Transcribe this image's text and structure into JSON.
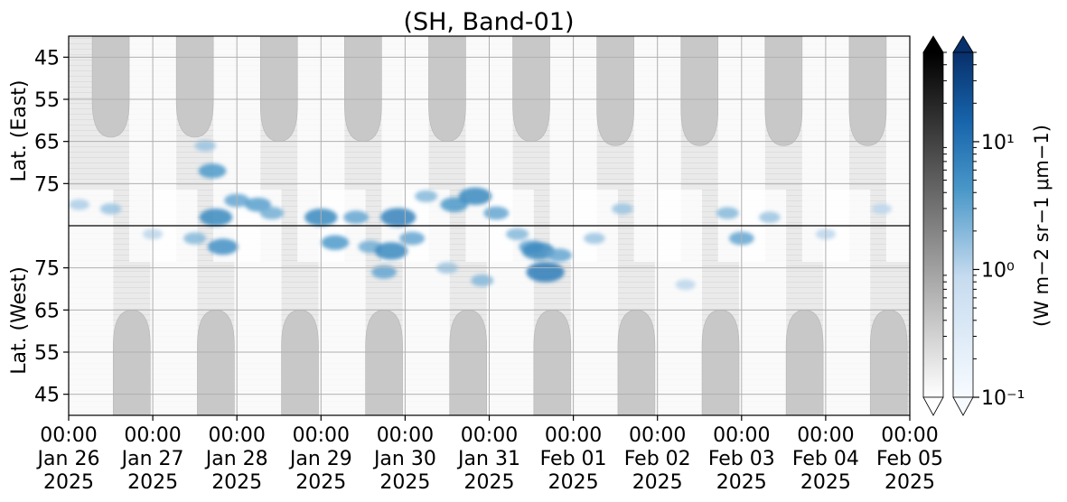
{
  "chart_data": {
    "type": "heatmap",
    "title": "(SH, Band-01)",
    "ylabel_top": "Lat. (East)",
    "ylabel_bottom": "Lat. (West)",
    "colorbar_label": "(W m−2 sr−1 μm−1)",
    "x_ticks": [
      {
        "time": "00:00",
        "date": "Jan 26",
        "year": "2025"
      },
      {
        "time": "00:00",
        "date": "Jan 27",
        "year": "2025"
      },
      {
        "time": "00:00",
        "date": "Jan 28",
        "year": "2025"
      },
      {
        "time": "00:00",
        "date": "Jan 29",
        "year": "2025"
      },
      {
        "time": "00:00",
        "date": "Jan 30",
        "year": "2025"
      },
      {
        "time": "00:00",
        "date": "Jan 31",
        "year": "2025"
      },
      {
        "time": "00:00",
        "date": "Feb 01",
        "year": "2025"
      },
      {
        "time": "00:00",
        "date": "Feb 02",
        "year": "2025"
      },
      {
        "time": "00:00",
        "date": "Feb 03",
        "year": "2025"
      },
      {
        "time": "00:00",
        "date": "Feb 04",
        "year": "2025"
      },
      {
        "time": "00:00",
        "date": "Feb 05",
        "year": "2025"
      }
    ],
    "xlim": [
      "2025-01-26 00:00",
      "2025-02-05 00:00"
    ],
    "y_ticks_top": [
      "45",
      "55",
      "65",
      "75"
    ],
    "y_ticks_bottom": [
      "75",
      "65",
      "55",
      "45"
    ],
    "east_ylim": [
      40,
      85
    ],
    "west_ylim": [
      85,
      40
    ],
    "grid": true,
    "colorbar_ticks": [
      "10⁻¹",
      "10⁰",
      "10¹"
    ],
    "colorbar_range": [
      0.1,
      50
    ],
    "colorbar_scale": "log",
    "colormaps": {
      "gray": [
        "#ffffff",
        "#000000"
      ],
      "blue": [
        "#f7fbff",
        "#08306b"
      ]
    },
    "masked_color": "#c8c8c8",
    "east_mask_lobes": [
      {
        "center": "2025-01-26 12:00",
        "min_lat": 64
      },
      {
        "center": "2025-01-27 12:00",
        "min_lat": 64
      },
      {
        "center": "2025-01-28 12:00",
        "min_lat": 65
      },
      {
        "center": "2025-01-29 12:00",
        "min_lat": 65
      },
      {
        "center": "2025-01-30 12:00",
        "min_lat": 65
      },
      {
        "center": "2025-01-31 12:00",
        "min_lat": 65
      },
      {
        "center": "2025-02-01 12:00",
        "min_lat": 66
      },
      {
        "center": "2025-02-02 12:00",
        "min_lat": 66
      },
      {
        "center": "2025-02-03 12:00",
        "min_lat": 66
      },
      {
        "center": "2025-02-04 12:00",
        "min_lat": 66
      }
    ],
    "west_mask_lobes": [
      {
        "center": "2025-01-26 18:00",
        "min_lat": 65
      },
      {
        "center": "2025-01-27 18:00",
        "min_lat": 65
      },
      {
        "center": "2025-01-28 18:00",
        "min_lat": 65
      },
      {
        "center": "2025-01-29 18:00",
        "min_lat": 65
      },
      {
        "center": "2025-01-30 18:00",
        "min_lat": 65
      },
      {
        "center": "2025-01-31 18:00",
        "min_lat": 65
      },
      {
        "center": "2025-02-01 18:00",
        "min_lat": 65
      },
      {
        "center": "2025-02-02 18:00",
        "min_lat": 65
      },
      {
        "center": "2025-02-03 18:00",
        "min_lat": 65
      },
      {
        "center": "2025-02-04 18:00",
        "min_lat": 65
      }
    ],
    "aurora_patches": [
      {
        "time": "2025-01-26 03:00",
        "lat": 80,
        "side": "east",
        "value": 1.2
      },
      {
        "time": "2025-01-26 12:00",
        "lat": 81,
        "side": "east",
        "value": 1.5
      },
      {
        "time": "2025-01-27 00:00",
        "lat": 83,
        "side": "west",
        "value": 1.0
      },
      {
        "time": "2025-01-27 12:00",
        "lat": 82,
        "side": "west",
        "value": 2.0
      },
      {
        "time": "2025-01-27 15:00",
        "lat": 66,
        "side": "east",
        "value": 1.5
      },
      {
        "time": "2025-01-27 17:00",
        "lat": 72,
        "side": "east",
        "value": 4.0
      },
      {
        "time": "2025-01-27 18:00",
        "lat": 83,
        "side": "east",
        "value": 6.0
      },
      {
        "time": "2025-01-27 20:00",
        "lat": 80,
        "side": "west",
        "value": 5.0
      },
      {
        "time": "2025-01-28 00:00",
        "lat": 79,
        "side": "east",
        "value": 3.0
      },
      {
        "time": "2025-01-28 06:00",
        "lat": 80,
        "side": "east",
        "value": 3.5
      },
      {
        "time": "2025-01-28 10:00",
        "lat": 82,
        "side": "east",
        "value": 2.5
      },
      {
        "time": "2025-01-29 00:00",
        "lat": 83,
        "side": "east",
        "value": 6.0
      },
      {
        "time": "2025-01-29 04:00",
        "lat": 81,
        "side": "west",
        "value": 4.0
      },
      {
        "time": "2025-01-29 10:00",
        "lat": 83,
        "side": "east",
        "value": 3.0
      },
      {
        "time": "2025-01-29 14:00",
        "lat": 80,
        "side": "west",
        "value": 2.5
      },
      {
        "time": "2025-01-29 18:00",
        "lat": 74,
        "side": "west",
        "value": 3.0
      },
      {
        "time": "2025-01-29 20:00",
        "lat": 79,
        "side": "west",
        "value": 6.0
      },
      {
        "time": "2025-01-29 22:00",
        "lat": 83,
        "side": "east",
        "value": 7.0
      },
      {
        "time": "2025-01-30 02:00",
        "lat": 82,
        "side": "west",
        "value": 3.0
      },
      {
        "time": "2025-01-30 06:00",
        "lat": 78,
        "side": "east",
        "value": 2.0
      },
      {
        "time": "2025-01-30 12:00",
        "lat": 75,
        "side": "west",
        "value": 1.5
      },
      {
        "time": "2025-01-30 14:00",
        "lat": 80,
        "side": "east",
        "value": 4.0
      },
      {
        "time": "2025-01-30 20:00",
        "lat": 78,
        "side": "east",
        "value": 6.0
      },
      {
        "time": "2025-01-30 22:00",
        "lat": 72,
        "side": "west",
        "value": 2.0
      },
      {
        "time": "2025-01-31 02:00",
        "lat": 82,
        "side": "east",
        "value": 3.0
      },
      {
        "time": "2025-01-31 08:00",
        "lat": 83,
        "side": "west",
        "value": 2.0
      },
      {
        "time": "2025-01-31 12:00",
        "lat": 80,
        "side": "west",
        "value": 3.0
      },
      {
        "time": "2025-01-31 14:00",
        "lat": 79,
        "side": "west",
        "value": 6.0
      },
      {
        "time": "2025-01-31 16:00",
        "lat": 74,
        "side": "west",
        "value": 8.0
      },
      {
        "time": "2025-01-31 20:00",
        "lat": 78,
        "side": "west",
        "value": 3.0
      },
      {
        "time": "2025-02-01 06:00",
        "lat": 82,
        "side": "west",
        "value": 1.5
      },
      {
        "time": "2025-02-01 14:00",
        "lat": 81,
        "side": "east",
        "value": 1.5
      },
      {
        "time": "2025-02-02 08:00",
        "lat": 71,
        "side": "west",
        "value": 1.0
      },
      {
        "time": "2025-02-02 20:00",
        "lat": 82,
        "side": "east",
        "value": 2.0
      },
      {
        "time": "2025-02-03 00:00",
        "lat": 82,
        "side": "west",
        "value": 3.0
      },
      {
        "time": "2025-02-03 08:00",
        "lat": 83,
        "side": "east",
        "value": 1.5
      },
      {
        "time": "2025-02-04 00:00",
        "lat": 83,
        "side": "west",
        "value": 1.0
      },
      {
        "time": "2025-02-04 16:00",
        "lat": 81,
        "side": "east",
        "value": 1.0
      }
    ]
  }
}
